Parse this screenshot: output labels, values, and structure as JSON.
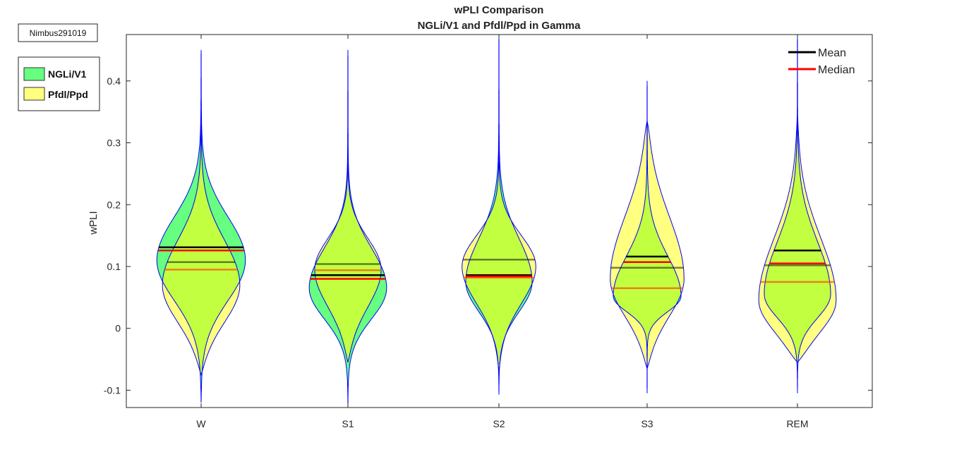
{
  "chart_data": {
    "type": "violin",
    "title": "wPLI Comparison",
    "subtitle": "NGLi/V1 and Pfdl/Ppd in Gamma",
    "xlabel": "",
    "ylabel": "wPLI",
    "ylim": [
      -0.128,
      0.475
    ],
    "yticks": [
      -0.1,
      0,
      0.1,
      0.2,
      0.3,
      0.4
    ],
    "ytick_labels": [
      "-0.1",
      "0",
      "0.1",
      "0.2",
      "0.3",
      "0.4"
    ],
    "categories": [
      "W",
      "S1",
      "S2",
      "S3",
      "REM"
    ],
    "tag": "Nimbus291019",
    "stat_legend": [
      {
        "label": "Mean",
        "color": "#000000"
      },
      {
        "label": "Median",
        "color": "#ff0000"
      }
    ],
    "series": [
      {
        "name": "NGLi/V1",
        "color": "#66ff80",
        "violins": [
          {
            "min": -0.12,
            "max": 0.45,
            "mode": 0.11,
            "peak": 0.12,
            "s_low": 0.065,
            "s_high": 0.07,
            "mean": 0.131,
            "median": 0.126
          },
          {
            "min": -0.127,
            "max": 0.45,
            "mode": 0.065,
            "peak": 0.105,
            "s_low": 0.05,
            "s_high": 0.065,
            "mean": 0.086,
            "median": 0.08
          },
          {
            "min": -0.107,
            "max": 0.475,
            "mode": 0.075,
            "peak": 0.09,
            "s_low": 0.048,
            "s_high": 0.07,
            "mean": 0.086,
            "median": 0.084
          },
          {
            "min": -0.105,
            "max": 0.4,
            "mode": 0.052,
            "peak": 0.092,
            "s_low": 0.025,
            "s_high": 0.065,
            "mean": 0.116,
            "median": 0.107
          },
          {
            "min": -0.105,
            "max": 0.475,
            "mode": 0.055,
            "peak": 0.09,
            "s_low": 0.038,
            "s_high": 0.085,
            "mean": 0.126,
            "median": 0.105
          }
        ]
      },
      {
        "name": "Pfdl/Ppd",
        "color": "#ffff80",
        "violins": [
          {
            "min": -0.075,
            "max": 0.37,
            "mode": 0.07,
            "peak": 0.105,
            "s_low": 0.06,
            "s_high": 0.072,
            "mean": 0.107,
            "median": 0.095
          },
          {
            "min": -0.055,
            "max": 0.33,
            "mode": 0.095,
            "peak": 0.09,
            "s_low": 0.06,
            "s_high": 0.05,
            "mean": 0.104,
            "median": 0.094
          },
          {
            "min": -0.07,
            "max": 0.335,
            "mode": 0.1,
            "peak": 0.1,
            "s_low": 0.06,
            "s_high": 0.05,
            "mean": 0.111,
            "median": 0.082
          },
          {
            "min": -0.065,
            "max": 0.335,
            "mode": 0.08,
            "peak": 0.1,
            "s_low": 0.06,
            "s_high": 0.1,
            "mean": 0.098,
            "median": 0.065
          },
          {
            "min": -0.055,
            "max": 0.345,
            "mode": 0.045,
            "peak": 0.105,
            "s_low": 0.05,
            "s_high": 0.1,
            "mean": 0.102,
            "median": 0.075
          }
        ]
      }
    ],
    "overlap_color": "#c2ff40",
    "outline_color": "#0000ff"
  }
}
